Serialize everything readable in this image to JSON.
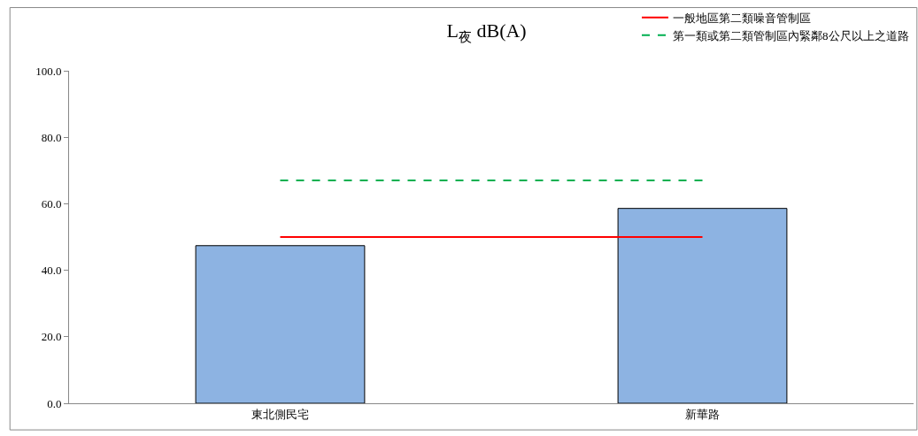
{
  "chart_data": {
    "type": "bar",
    "title": "L$_{夜}$ dB(A)",
    "categories": [
      "東北側民宅",
      "新華路"
    ],
    "series": [
      {
        "color": "#8db3e2",
        "values": [
          47.4,
          58.6
        ]
      },
      {
        "type": "line",
        "name": "一般地區第二類噪音管制區",
        "color": "#ff0000",
        "line_style": "solid",
        "values": [
          50,
          50
        ]
      },
      {
        "type": "line",
        "name": "第一類或第二類管制區內緊鄰8公尺以上之道路",
        "color": "#00b050",
        "line_style": "dashed",
        "values": [
          67,
          67
        ]
      }
    ],
    "ylim": [
      0,
      100
    ],
    "yticks": [
      {
        "value": 0,
        "label": "0.0"
      },
      {
        "value": 20,
        "label": "20.0"
      },
      {
        "value": 40,
        "label": "40.0"
      },
      {
        "value": 60,
        "label": "60.0"
      },
      {
        "value": 80,
        "label": "80.0"
      },
      {
        "value": 100,
        "label": "100.0"
      }
    ],
    "grid": false,
    "legend": "top right"
  }
}
